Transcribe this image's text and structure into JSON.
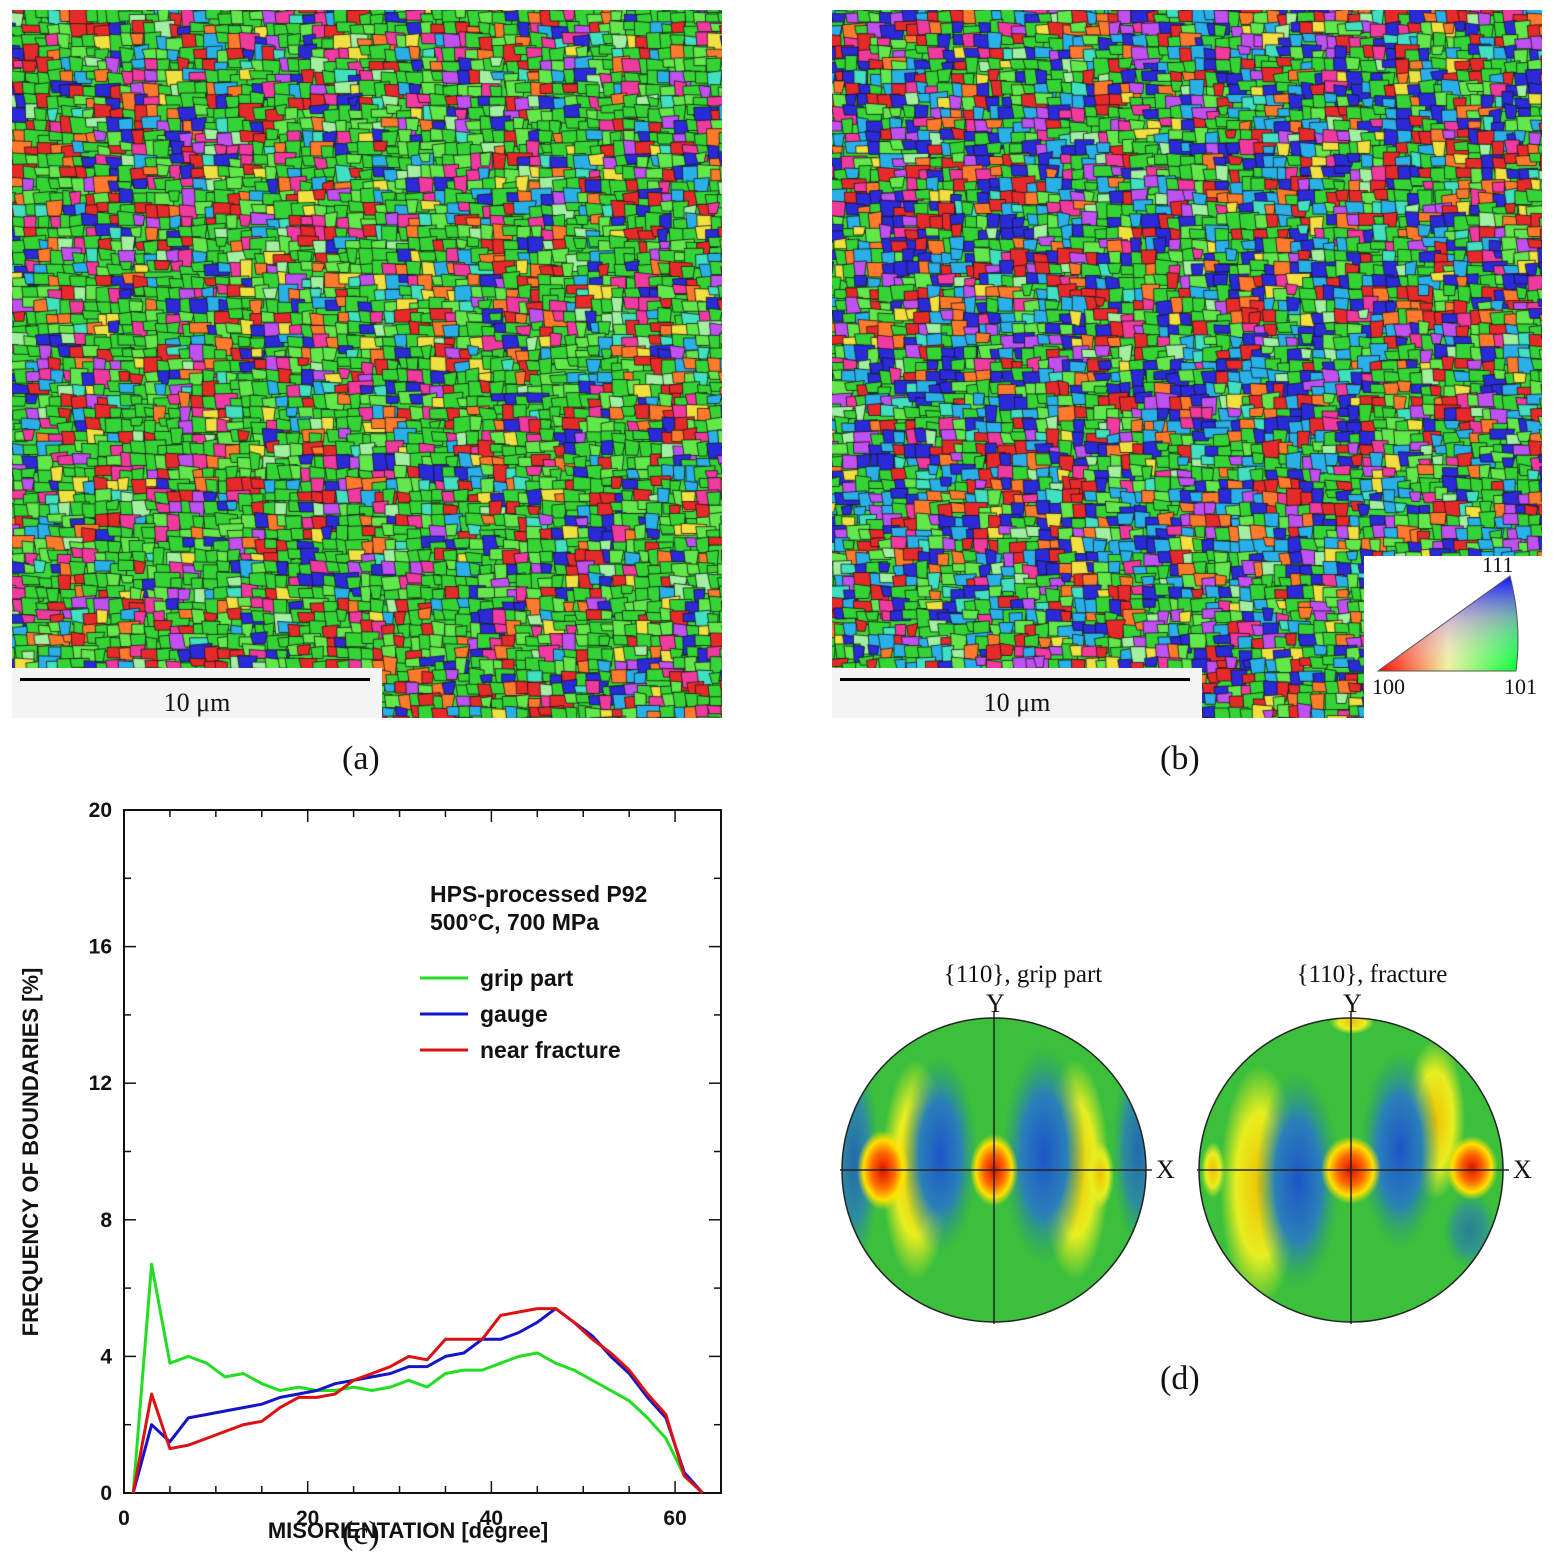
{
  "panels": {
    "a": {
      "label": "(a)",
      "scale_label": "10 μm"
    },
    "b": {
      "label": "(b)",
      "scale_label": "10 μm"
    },
    "c": {
      "label": "(c)"
    },
    "d": {
      "label": "(d)"
    }
  },
  "ipf_key": {
    "top": "111",
    "bottom_left": "100",
    "bottom_right": "101"
  },
  "colors": {
    "grip": "#22dd22",
    "gauge": "#1515c8",
    "fracture": "#dd1111"
  },
  "chart_data": {
    "type": "line",
    "title": "",
    "annotations": [
      "HPS-processed P92",
      "500°C, 700 MPa"
    ],
    "xlabel": "MISORIENTATION [degree]",
    "ylabel": "FREQUENCY OF BOUNDARIES [%]",
    "xlim": [
      0,
      65
    ],
    "ylim": [
      0,
      20
    ],
    "xticks": [
      0,
      20,
      40,
      60
    ],
    "yticks": [
      0,
      4,
      8,
      12,
      16,
      20
    ],
    "legend_position": "top-right",
    "x": [
      1,
      3,
      5,
      7,
      9,
      11,
      13,
      15,
      17,
      19,
      21,
      23,
      25,
      27,
      29,
      31,
      33,
      35,
      37,
      39,
      41,
      43,
      45,
      47,
      49,
      51,
      53,
      55,
      57,
      59,
      61,
      63
    ],
    "series": [
      {
        "name": "grip part",
        "color": "#22dd22",
        "values": [
          0,
          6.7,
          3.8,
          4.0,
          3.8,
          3.4,
          3.5,
          3.2,
          3.0,
          3.1,
          3.0,
          3.0,
          3.1,
          3.0,
          3.1,
          3.3,
          3.1,
          3.5,
          3.6,
          3.6,
          3.8,
          4.0,
          4.1,
          3.8,
          3.6,
          3.3,
          3.0,
          2.7,
          2.2,
          1.6,
          0.5,
          0
        ]
      },
      {
        "name": "gauge",
        "color": "#1515c8",
        "values": [
          0,
          2.0,
          1.5,
          2.2,
          2.3,
          2.4,
          2.5,
          2.6,
          2.8,
          2.9,
          3.0,
          3.2,
          3.3,
          3.4,
          3.5,
          3.7,
          3.7,
          4.0,
          4.1,
          4.5,
          4.5,
          4.7,
          5.0,
          5.4,
          5.0,
          4.6,
          4.0,
          3.5,
          2.8,
          2.2,
          0.6,
          0
        ]
      },
      {
        "name": "near fracture",
        "color": "#dd1111",
        "values": [
          0,
          2.9,
          1.3,
          1.4,
          1.6,
          1.8,
          2.0,
          2.1,
          2.5,
          2.8,
          2.8,
          2.9,
          3.3,
          3.5,
          3.7,
          4.0,
          3.9,
          4.5,
          4.5,
          4.5,
          5.2,
          5.3,
          5.4,
          5.4,
          5.0,
          4.5,
          4.1,
          3.6,
          2.9,
          2.3,
          0.5,
          0
        ]
      }
    ]
  },
  "pole_figures": [
    {
      "title": "{110}, grip part",
      "x_axis": "X",
      "y_axis": "Y"
    },
    {
      "title": "{110}, fracture",
      "x_axis": "X",
      "y_axis": "Y"
    }
  ]
}
